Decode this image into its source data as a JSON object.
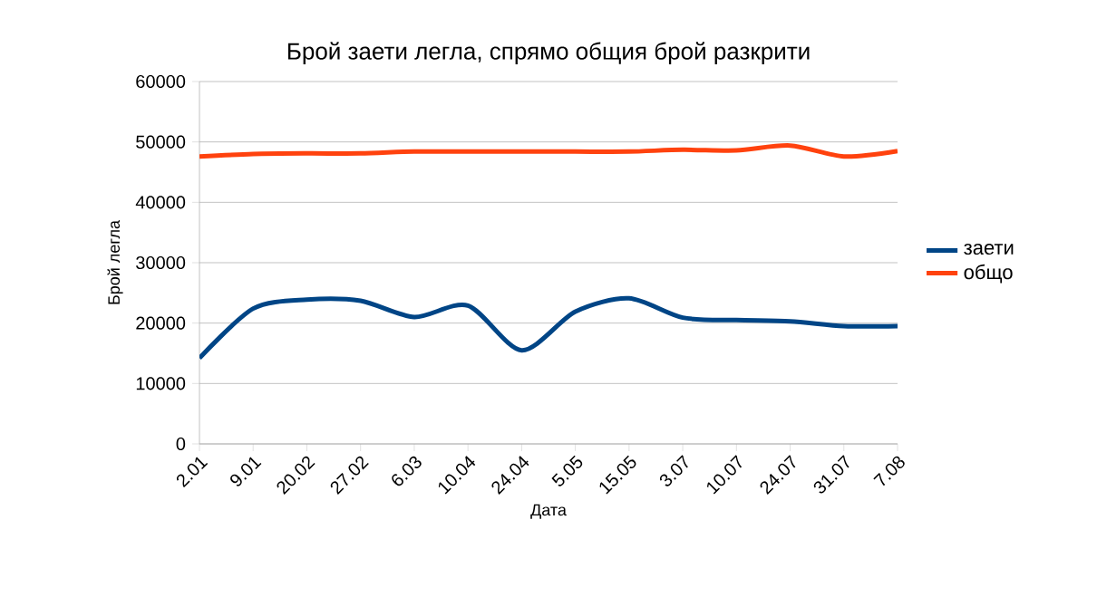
{
  "chart_data": {
    "type": "line",
    "title": "Брой заети легла, спрямо общия брой разкрити",
    "xlabel": "Дата",
    "ylabel": "Брой легла",
    "categories": [
      "2.01",
      "9.01",
      "20.02",
      "27.02",
      "6.03",
      "10.04",
      "24.04",
      "5.05",
      "15.05",
      "3.07",
      "10.07",
      "24.07",
      "31.07",
      "7.08"
    ],
    "series": [
      {
        "name": "заети",
        "color": "#004586",
        "values": [
          14200,
          22400,
          23900,
          23700,
          21000,
          22900,
          15500,
          21900,
          24100,
          20900,
          20500,
          20300,
          19500,
          19500
        ]
      },
      {
        "name": "общо",
        "color": "#ff420e",
        "values": [
          47600,
          48000,
          48100,
          48100,
          48400,
          48400,
          48400,
          48400,
          48400,
          48700,
          48600,
          49400,
          47600,
          48500
        ]
      }
    ],
    "ylim": [
      0,
      60000
    ],
    "yticks": [
      0,
      10000,
      20000,
      30000,
      40000,
      50000,
      60000
    ],
    "grid": "y",
    "legend": "right",
    "marker": "none",
    "line_style": "solid"
  }
}
